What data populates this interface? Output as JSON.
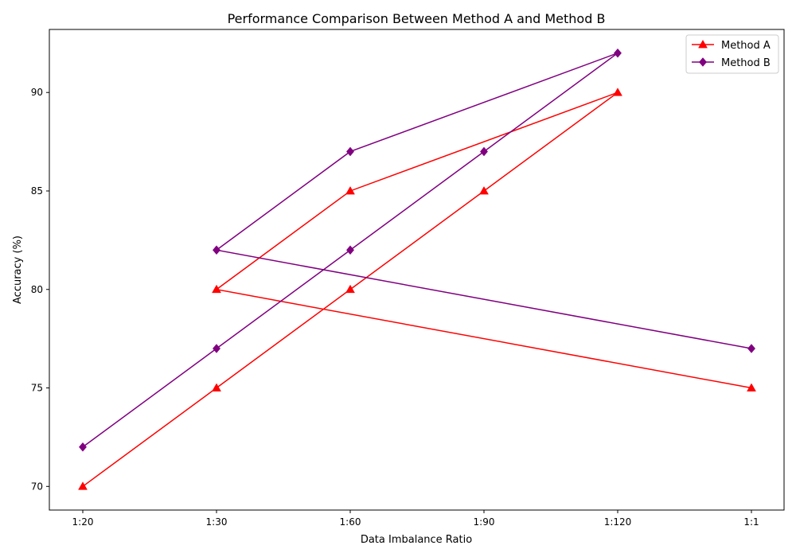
{
  "chart_data": {
    "type": "line",
    "title": "Performance Comparison Between Method A and Method B",
    "xlabel": "Data Imbalance Ratio",
    "ylabel": "Accuracy (%)",
    "categories": [
      "1:20",
      "1:30",
      "1:60",
      "1:90",
      "1:120",
      "1:1"
    ],
    "ylim": [
      68.8,
      93.2
    ],
    "yticks": [
      70,
      75,
      80,
      85,
      90
    ],
    "grid": false,
    "legend_position": "top-right",
    "series": [
      {
        "name": "Method A",
        "color": "#ff0000",
        "marker": "triangle",
        "points": [
          {
            "x": "1:20",
            "y": 70
          },
          {
            "x": "1:30",
            "y": 75
          },
          {
            "x": "1:60",
            "y": 80
          },
          {
            "x": "1:90",
            "y": 85
          },
          {
            "x": "1:120",
            "y": 90
          },
          {
            "x": "1:60",
            "y": 85
          },
          {
            "x": "1:30",
            "y": 80
          },
          {
            "x": "1:1",
            "y": 75
          }
        ]
      },
      {
        "name": "Method B",
        "color": "#800080",
        "marker": "diamond",
        "points": [
          {
            "x": "1:20",
            "y": 72
          },
          {
            "x": "1:30",
            "y": 77
          },
          {
            "x": "1:60",
            "y": 82
          },
          {
            "x": "1:90",
            "y": 87
          },
          {
            "x": "1:120",
            "y": 92
          },
          {
            "x": "1:60",
            "y": 87
          },
          {
            "x": "1:30",
            "y": 82
          },
          {
            "x": "1:1",
            "y": 77
          }
        ]
      }
    ]
  }
}
